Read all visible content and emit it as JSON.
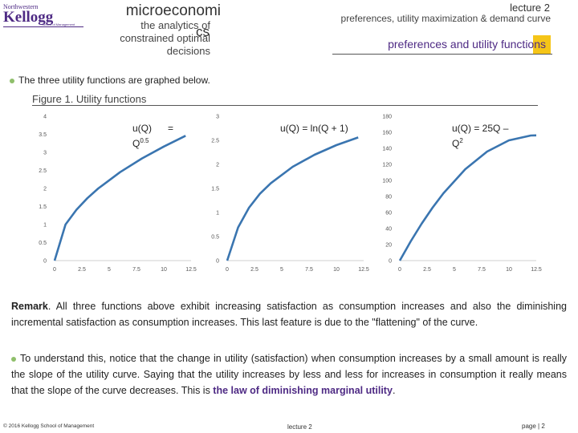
{
  "logo": {
    "line1": "Northwestern",
    "line2": "Kellogg",
    "line3": "School of Management"
  },
  "header": {
    "course_title": "microeconomi",
    "course_suffix": "cs",
    "course_subtitle_1": "the analytics of",
    "course_subtitle_2": "constrained optimal",
    "course_subtitle_3": "decisions",
    "lecture": "lecture 2",
    "topic": "preferences, utility maximization & demand curve",
    "section_title": "preferences and utility functions"
  },
  "intro": "The three utility functions are graphed below.",
  "figure_caption": "Figure 1. Utility functions",
  "colors": {
    "curve": "#3a75b0",
    "accent": "#4e2a84",
    "highlight": "#f5c518",
    "bullet": "#8fbf6b"
  },
  "chart_data": [
    {
      "type": "line",
      "title_a": "u(Q)",
      "title_b": "=",
      "title_c": "Q",
      "title_sup": "0.5",
      "xlim": [
        0,
        12.5
      ],
      "ylim": [
        0,
        4
      ],
      "x_ticks": [
        "0",
        "2.5",
        "5",
        "7.5",
        "10",
        "12.5"
      ],
      "y_ticks": [
        "0",
        "0.5",
        "1",
        "1.5",
        "2",
        "2.5",
        "3",
        "3.5",
        "4"
      ],
      "series": [
        {
          "x": [
            0,
            1,
            2,
            3,
            4,
            6,
            8,
            10,
            12
          ],
          "values": [
            0,
            1,
            1.41,
            1.73,
            2,
            2.45,
            2.83,
            3.16,
            3.46
          ]
        }
      ]
    },
    {
      "type": "line",
      "title_a": "u(Q) = ln(Q + 1)",
      "xlim": [
        0,
        12.5
      ],
      "ylim": [
        0,
        3
      ],
      "x_ticks": [
        "0",
        "2.5",
        "5",
        "7.5",
        "10",
        "12.5"
      ],
      "y_ticks": [
        "0",
        "0.5",
        "1",
        "1.5",
        "2",
        "2.5",
        "3"
      ],
      "series": [
        {
          "x": [
            0,
            1,
            2,
            3,
            4,
            6,
            8,
            10,
            12
          ],
          "values": [
            0,
            0.69,
            1.1,
            1.39,
            1.61,
            1.95,
            2.2,
            2.4,
            2.56
          ]
        }
      ]
    },
    {
      "type": "line",
      "title_a": "u(Q) = 25Q –",
      "title_c": "Q",
      "title_sup": "2",
      "xlim": [
        0,
        12.5
      ],
      "ylim": [
        0,
        180
      ],
      "x_ticks": [
        "0",
        "2.5",
        "5",
        "7.5",
        "10",
        "12.5"
      ],
      "y_ticks": [
        "0",
        "20",
        "40",
        "60",
        "80",
        "100",
        "120",
        "140",
        "160",
        "180"
      ],
      "series": [
        {
          "x": [
            0,
            1,
            2,
            3,
            4,
            6,
            8,
            10,
            12,
            12.5
          ],
          "values": [
            0,
            24,
            46,
            66,
            84,
            114,
            136,
            150,
            156,
            156.25
          ]
        }
      ]
    }
  ],
  "remark": {
    "label": "Remark",
    "text": ". All three functions above exhibit increasing satisfaction as consumption increases and also the diminishing incremental satisfaction as consumption increases. This last feature is due to the \"flattening\" of the curve."
  },
  "para2": {
    "text": "To understand this, notice that the change in utility (satisfaction) when consumption increases by a small amount is really the slope of the utility curve. Saying that the utility increases by less and less for increases in consumption it really means that the slope of the curve decreases. This is ",
    "highlight": "the law of diminishing marginal utility",
    "end": "."
  },
  "footer": {
    "left": "© 2016 Kellogg School of Management",
    "mid": "lecture 2",
    "right": "page  |  2"
  }
}
